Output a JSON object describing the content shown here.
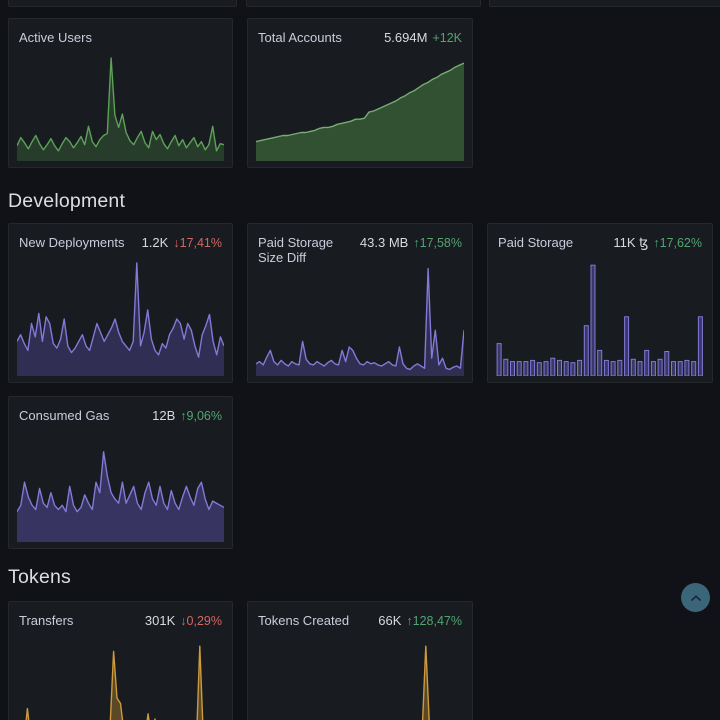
{
  "app": {
    "background": "#111217",
    "panel_bg": "#181b20",
    "panel_border": "#25272c",
    "accent_up": "#54a471",
    "accent_down": "#d26662"
  },
  "sections": [
    {
      "label": "Development"
    },
    {
      "label": "Tokens"
    }
  ],
  "panels": [
    {
      "title": "Active Users",
      "value": "",
      "delta": "",
      "dir": "none",
      "chart": {
        "type": "area",
        "line": "#5ca257",
        "fill": "rgba(88,158,76,0.25)",
        "values": [
          14,
          22,
          17,
          11,
          18,
          24,
          16,
          10,
          15,
          21,
          14,
          9,
          16,
          22,
          18,
          12,
          17,
          23,
          15,
          33,
          18,
          13,
          20,
          24,
          26,
          100,
          44,
          32,
          45,
          27,
          19,
          15,
          22,
          28,
          17,
          12,
          28,
          20,
          25,
          16,
          11,
          18,
          24,
          14,
          20,
          12,
          17,
          22,
          13,
          18,
          10,
          15,
          33,
          9,
          16,
          15
        ]
      }
    },
    {
      "title": "Total Accounts",
      "value": "5.694M",
      "delta": "+12K",
      "dir": "up",
      "chart": {
        "type": "area",
        "line": "#77ad72",
        "fill": "rgba(88,158,76,0.42)",
        "values": [
          18,
          19,
          20,
          21,
          22,
          23,
          24,
          24,
          25,
          26,
          27,
          27,
          28,
          29,
          31,
          32,
          32,
          33,
          35,
          36,
          37,
          38,
          40,
          40,
          41,
          47,
          48,
          50,
          52,
          54,
          56,
          58,
          61,
          63,
          66,
          68,
          71,
          74,
          76,
          79,
          81,
          84,
          86,
          88,
          91,
          93,
          95
        ]
      }
    },
    {
      "title": "New Deployments",
      "value": "1.2K",
      "delta": "↓17,41%",
      "dir": "down",
      "chart": {
        "type": "area",
        "line": "#8379d6",
        "fill": "rgba(110,97,214,0.28)",
        "values": [
          30,
          36,
          28,
          22,
          46,
          34,
          55,
          30,
          52,
          46,
          28,
          24,
          32,
          50,
          26,
          20,
          24,
          30,
          36,
          26,
          22,
          34,
          46,
          38,
          30,
          36,
          42,
          50,
          38,
          30,
          26,
          22,
          30,
          100,
          26,
          38,
          58,
          32,
          22,
          18,
          28,
          24,
          36,
          42,
          50,
          46,
          32,
          46,
          40,
          26,
          16,
          36,
          44,
          54,
          30,
          18,
          34,
          26
        ]
      }
    },
    {
      "title": "Paid Storage Size Diff",
      "value": "43.3 MB",
      "delta": "↑17,58%",
      "dir": "up",
      "chart": {
        "type": "area",
        "line": "#8379d6",
        "fill": "rgba(110,97,214,0.28)",
        "values": [
          10,
          12,
          9,
          16,
          22,
          12,
          9,
          13,
          10,
          8,
          12,
          10,
          9,
          30,
          14,
          10,
          9,
          12,
          10,
          8,
          11,
          13,
          10,
          9,
          22,
          12,
          25,
          22,
          15,
          10,
          9,
          12,
          10,
          11,
          9,
          8,
          10,
          12,
          9,
          8,
          25,
          10,
          6,
          5,
          8,
          10,
          8,
          6,
          95,
          15,
          40,
          9,
          15,
          6,
          5,
          7,
          8,
          6,
          40
        ]
      }
    },
    {
      "title": "Paid Storage",
      "value": "11K ꜩ",
      "delta": "↑17,62%",
      "dir": "up",
      "chart": {
        "type": "bars",
        "line": "#8379d6",
        "fill": "rgba(110,97,214,0.40)",
        "values": [
          28,
          14,
          12,
          12,
          12,
          13,
          11,
          12,
          15,
          13,
          12,
          11,
          13,
          44,
          98,
          22,
          13,
          12,
          13,
          52,
          14,
          12,
          22,
          12,
          14,
          21,
          12,
          12,
          13,
          12,
          52
        ]
      }
    },
    {
      "title": "Consumed Gas",
      "value": "12B",
      "delta": "↑9,06%",
      "dir": "up",
      "chart": {
        "type": "area",
        "line": "#8379d6",
        "fill": "rgba(110,97,214,0.36)",
        "values": [
          28,
          34,
          56,
          42,
          34,
          30,
          50,
          36,
          32,
          46,
          34,
          30,
          34,
          28,
          52,
          34,
          28,
          32,
          44,
          36,
          30,
          56,
          46,
          85,
          62,
          46,
          40,
          36,
          56,
          36,
          44,
          52,
          36,
          30,
          46,
          56,
          40,
          34,
          52,
          36,
          30,
          48,
          36,
          30,
          42,
          52,
          42,
          34,
          50,
          56,
          40,
          30,
          38,
          36,
          34,
          32
        ]
      }
    },
    {
      "title": "Transfers",
      "value": "301K",
      "delta": "↓0,29%",
      "dir": "down",
      "chart": {
        "type": "area",
        "line": "#cf9a3c",
        "fill": "rgba(200,148,50,0.38)",
        "values": [
          1,
          2,
          2,
          35,
          6,
          2,
          15,
          3,
          1,
          2,
          2,
          1,
          2,
          3,
          2,
          1,
          2,
          2,
          3,
          2,
          1,
          2,
          3,
          2,
          2,
          3,
          8,
          20,
          90,
          45,
          40,
          12,
          4,
          2,
          2,
          3,
          2,
          6,
          30,
          5,
          25,
          4,
          3,
          20,
          5,
          2,
          2,
          3,
          2,
          2,
          1,
          2,
          3,
          95,
          8,
          3,
          8,
          2,
          1,
          2,
          1
        ]
      }
    },
    {
      "title": "Tokens Created",
      "value": "66K",
      "delta": "↑128,47%",
      "dir": "up",
      "chart": {
        "type": "area",
        "line": "#cf9a3c",
        "fill": "rgba(200,148,50,0.38)",
        "values": [
          1,
          1,
          2,
          1,
          1,
          1,
          2,
          1,
          1,
          1,
          1,
          2,
          1,
          1,
          1,
          2,
          1,
          1,
          1,
          1,
          2,
          1,
          1,
          1,
          2,
          1,
          1,
          1,
          1,
          2,
          1,
          1,
          1,
          2,
          1,
          1,
          1,
          2,
          1,
          1,
          95,
          6,
          2,
          1,
          1,
          1,
          2,
          1,
          1,
          1
        ]
      }
    }
  ],
  "scroll_top": {
    "icon": "chevron-up"
  }
}
